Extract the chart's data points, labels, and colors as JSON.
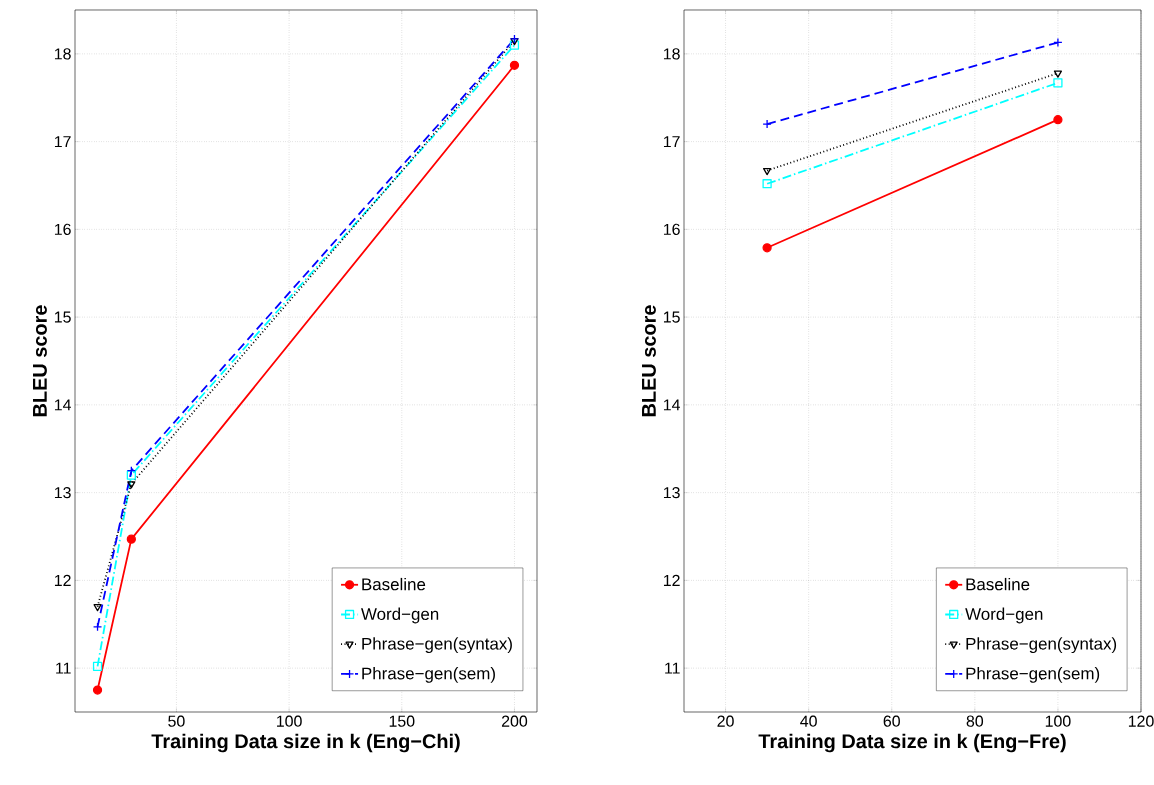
{
  "chart_data": [
    {
      "type": "line",
      "xlabel": "Training Data size in k (Eng−Chi)",
      "ylabel": "BLEU score",
      "x": [
        15,
        30,
        200
      ],
      "xlim": [
        5,
        210
      ],
      "ylim": [
        10.5,
        18.5
      ],
      "xticks": [
        50,
        100,
        150,
        200
      ],
      "yticks": [
        11,
        12,
        13,
        14,
        15,
        16,
        17,
        18
      ],
      "grid": true,
      "legend": "bottom right",
      "series": [
        {
          "name": "Baseline",
          "color": "#ff0000",
          "values": [
            10.75,
            12.47,
            17.87
          ],
          "marker": "circle",
          "line_style": "solid"
        },
        {
          "name": "Word−gen",
          "color": "#00ffff",
          "values": [
            11.02,
            13.2,
            18.1
          ],
          "marker": "square",
          "line_style": "dashdot"
        },
        {
          "name": "Phrase−gen(syntax)",
          "color": "#000000",
          "values": [
            11.7,
            13.1,
            18.15
          ],
          "marker": "triangle",
          "line_style": "dotted"
        },
        {
          "name": "Phrase−gen(sem)",
          "color": "#0000ff",
          "values": [
            11.47,
            13.25,
            18.17
          ],
          "marker": "cross",
          "line_style": "dashed"
        }
      ]
    },
    {
      "type": "line",
      "xlabel": "Training Data size in k (Eng−Fre)",
      "ylabel": "BLEU score",
      "x": [
        30,
        100
      ],
      "xlim": [
        10,
        120
      ],
      "ylim": [
        10.5,
        18.5
      ],
      "xticks": [
        20,
        40,
        60,
        80,
        100,
        120
      ],
      "yticks": [
        11,
        12,
        13,
        14,
        15,
        16,
        17,
        18
      ],
      "grid": true,
      "legend": "bottom right",
      "series": [
        {
          "name": "Baseline",
          "color": "#ff0000",
          "values": [
            15.79,
            17.25
          ],
          "marker": "circle",
          "line_style": "solid"
        },
        {
          "name": "Word−gen",
          "color": "#00ffff",
          "values": [
            16.52,
            17.67
          ],
          "marker": "square",
          "line_style": "dashdot"
        },
        {
          "name": "Phrase−gen(syntax)",
          "color": "#000000",
          "values": [
            16.67,
            17.78
          ],
          "marker": "triangle",
          "line_style": "dotted"
        },
        {
          "name": "Phrase−gen(sem)",
          "color": "#0000ff",
          "values": [
            17.2,
            18.13
          ],
          "marker": "cross",
          "line_style": "dashed"
        }
      ]
    }
  ]
}
